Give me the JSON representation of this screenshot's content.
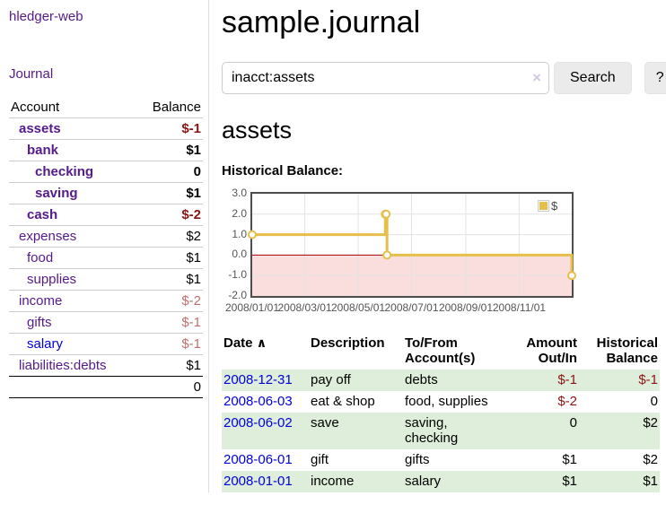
{
  "colors": {
    "visited_link": "#551a8b",
    "unvisited_link": "#0000dd",
    "negative_strong": "#8b1414",
    "negative_muted": "#c17070",
    "row_stripe_green": "#dfeeda",
    "chart_line": "#e6bf4a",
    "chart_negative_region": "#fadddd",
    "chart_zero_line": "#a40000",
    "chart_grid": "#e3e3e3",
    "chart_border": "#4d4d4d"
  },
  "sidebar": {
    "app_title": "hledger-web",
    "journal_link": "Journal",
    "table": {
      "headers": [
        "Account",
        "Balance"
      ],
      "rows": [
        {
          "account": "assets",
          "balance": "$-1",
          "depth": 1,
          "bold": true,
          "link_style": "visited",
          "balance_style": "neg-strong"
        },
        {
          "account": "bank",
          "balance": "$1",
          "depth": 2,
          "bold": true,
          "link_style": "visited",
          "balance_style": ""
        },
        {
          "account": "checking",
          "balance": "0",
          "depth": 3,
          "bold": true,
          "link_style": "visited",
          "balance_style": ""
        },
        {
          "account": "saving",
          "balance": "$1",
          "depth": 3,
          "bold": true,
          "link_style": "visited",
          "balance_style": ""
        },
        {
          "account": "cash",
          "balance": "$-2",
          "depth": 2,
          "bold": true,
          "link_style": "visited",
          "balance_style": "neg-strong"
        },
        {
          "account": "expenses",
          "balance": "$2",
          "depth": 1,
          "bold": false,
          "link_style": "visited",
          "balance_style": ""
        },
        {
          "account": "food",
          "balance": "$1",
          "depth": 2,
          "bold": false,
          "link_style": "visited",
          "balance_style": ""
        },
        {
          "account": "supplies",
          "balance": "$1",
          "depth": 2,
          "bold": false,
          "link_style": "visited",
          "balance_style": ""
        },
        {
          "account": "income",
          "balance": "$-2",
          "depth": 1,
          "bold": false,
          "link_style": "visited",
          "balance_style": "neg-muted"
        },
        {
          "account": "gifts",
          "balance": "$-1",
          "depth": 2,
          "bold": false,
          "link_style": "visited",
          "balance_style": "neg-muted"
        },
        {
          "account": "salary",
          "balance": "$-1",
          "depth": 2,
          "bold": false,
          "link_style": "blue",
          "balance_style": "neg-muted"
        },
        {
          "account": "liabilities:debts",
          "balance": "$1",
          "depth": 1,
          "bold": false,
          "link_style": "visited",
          "balance_style": ""
        }
      ],
      "total": "0"
    }
  },
  "main": {
    "title": "sample.journal",
    "account_heading": "assets",
    "chart_label": "Historical Balance:"
  },
  "search": {
    "value": "inacct:assets",
    "clear_icon": "×",
    "button_label": "Search",
    "help_label": "?"
  },
  "chart_data": {
    "type": "line",
    "step": true,
    "title": "Historical Balance",
    "x_range": [
      "2008-01-01",
      "2008-12-31"
    ],
    "ylim": [
      -2,
      3
    ],
    "y_ticks": [
      "3.0",
      "2.0",
      "1.0",
      "0.0",
      "-1.0",
      "-2.0"
    ],
    "x_ticks": [
      "2008/01/01",
      "2008/03/01",
      "2008/05/01",
      "2008/07/01",
      "2008/09/01",
      "2008/11/01"
    ],
    "legend": "$",
    "legend_position": "top-right",
    "grid": true,
    "series": [
      {
        "name": "$",
        "color": "#e6bf4a",
        "points": [
          [
            "2008-01-01",
            1
          ],
          [
            "2008-06-01",
            2
          ],
          [
            "2008-06-02",
            2
          ],
          [
            "2008-06-03",
            0
          ],
          [
            "2008-12-31",
            -1
          ]
        ]
      }
    ]
  },
  "transactions": {
    "headers": {
      "date": "Date",
      "sort_icon": "∧",
      "description": "Description",
      "accounts": "To/From\nAccount(s)",
      "amount": "Amount\nOut/In",
      "balance": "Historical\nBalance"
    },
    "rows": [
      {
        "date": "2008-12-31",
        "description": "pay off",
        "accounts": "debts",
        "amount": "$-1",
        "balance": "$-1",
        "amount_style": "neg-strong",
        "balance_style": "neg-strong"
      },
      {
        "date": "2008-06-03",
        "description": "eat & shop",
        "accounts": "food, supplies",
        "amount": "$-2",
        "balance": "0",
        "amount_style": "neg-strong",
        "balance_style": ""
      },
      {
        "date": "2008-06-02",
        "description": "save",
        "accounts": "saving,\nchecking",
        "amount": "0",
        "balance": "$2",
        "amount_style": "",
        "balance_style": ""
      },
      {
        "date": "2008-06-01",
        "description": "gift",
        "accounts": "gifts",
        "amount": "$1",
        "balance": "$2",
        "amount_style": "",
        "balance_style": ""
      },
      {
        "date": "2008-01-01",
        "description": "income",
        "accounts": "salary",
        "amount": "$1",
        "balance": "$1",
        "amount_style": "",
        "balance_style": ""
      }
    ]
  }
}
